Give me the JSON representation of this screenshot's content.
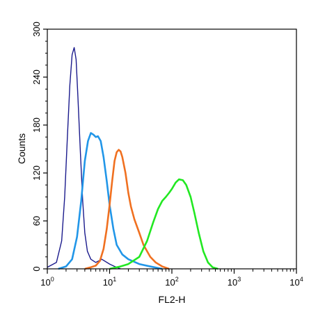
{
  "chart_data": {
    "type": "line",
    "title": "",
    "xlabel": "FL2-H",
    "ylabel": "Counts",
    "x_scale": "log",
    "xlim": [
      1,
      10000
    ],
    "ylim": [
      0,
      300
    ],
    "x_ticks": [
      {
        "base": "10",
        "exp": "0",
        "value": 1
      },
      {
        "base": "10",
        "exp": "1",
        "value": 10
      },
      {
        "base": "10",
        "exp": "2",
        "value": 100
      },
      {
        "base": "10",
        "exp": "3",
        "value": 1000
      },
      {
        "base": "10",
        "exp": "4",
        "value": 10000
      }
    ],
    "y_ticks": [
      0,
      60,
      120,
      180,
      240,
      300
    ],
    "grid": false,
    "legend": "none",
    "series": [
      {
        "color": "#1a1a8c",
        "x": [
          1.0,
          1.4,
          1.7,
          1.9,
          2.1,
          2.3,
          2.5,
          2.7,
          2.9,
          3.1,
          3.4,
          3.7,
          4.0,
          4.4,
          5.0,
          6.0,
          7.5,
          10,
          12,
          15
        ],
        "y": [
          2,
          8,
          35,
          90,
          165,
          230,
          268,
          277,
          262,
          215,
          145,
          85,
          45,
          22,
          12,
          8,
          12,
          6,
          3,
          0
        ]
      },
      {
        "color": "#2196e8",
        "x": [
          1.5,
          2.0,
          2.5,
          3.0,
          3.5,
          4.0,
          4.5,
          5.0,
          5.5,
          6.0,
          6.5,
          7.2,
          8.0,
          9.0,
          10,
          11.5,
          13,
          16,
          20,
          30,
          45,
          70
        ],
        "y": [
          0,
          3,
          12,
          40,
          85,
          135,
          160,
          170,
          168,
          165,
          166,
          160,
          140,
          110,
          80,
          50,
          30,
          18,
          12,
          6,
          3,
          0
        ]
      },
      {
        "color": "#f07020",
        "x": [
          4,
          5,
          6,
          7,
          8,
          9,
          10,
          11,
          12,
          13,
          14,
          15,
          16,
          18,
          20,
          22,
          25,
          30,
          35,
          45,
          55,
          70,
          90
        ],
        "y": [
          0,
          2,
          4,
          10,
          25,
          50,
          80,
          110,
          135,
          146,
          149,
          147,
          140,
          120,
          95,
          78,
          62,
          45,
          30,
          15,
          8,
          3,
          0
        ]
      },
      {
        "color": "#22e822",
        "x": [
          10,
          15,
          20,
          30,
          40,
          50,
          60,
          70,
          80,
          90,
          100,
          115,
          130,
          150,
          170,
          200,
          230,
          270,
          320,
          380,
          450,
          550
        ],
        "y": [
          0,
          3,
          6,
          15,
          35,
          58,
          75,
          85,
          90,
          95,
          100,
          108,
          112,
          111,
          105,
          90,
          70,
          45,
          22,
          8,
          2,
          0
        ]
      }
    ]
  }
}
